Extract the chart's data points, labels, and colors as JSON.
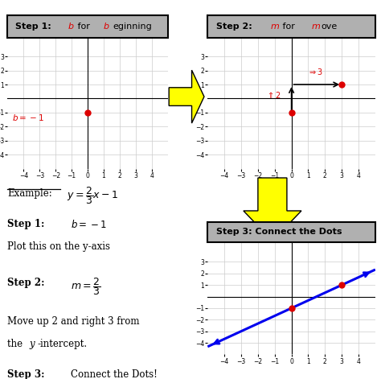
{
  "background_color": "#ffffff",
  "grid_color": "#cccccc",
  "axis_color": "#000000",
  "xlim": [
    -5,
    5
  ],
  "ylim": [
    -5,
    5
  ],
  "xticks": [
    -4,
    -3,
    -2,
    -1,
    0,
    1,
    2,
    3,
    4
  ],
  "yticks": [
    -4,
    -3,
    -2,
    -1,
    1,
    2,
    3
  ],
  "b_value": -1,
  "slope_num": 2,
  "slope_den": 3,
  "point1": [
    0,
    -1
  ],
  "point2": [
    3,
    1
  ],
  "dot_color": "#dd0000",
  "line_color": "#0000ee",
  "box_bg": "#b0b0b0",
  "text_color_red": "#dd0000"
}
